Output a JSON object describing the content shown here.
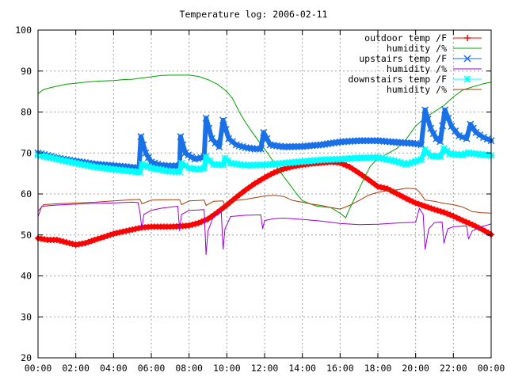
{
  "chart_data": {
    "type": "line",
    "title": "Temperature log: 2006-02-11",
    "xlabel": "",
    "ylabel": "",
    "xlim": [
      0,
      24
    ],
    "ylim": [
      20,
      100
    ],
    "grid": true,
    "legend_position": "top-right",
    "x_tick_labels": [
      "00:00",
      "02:00",
      "04:00",
      "06:00",
      "08:00",
      "10:00",
      "12:00",
      "14:00",
      "16:00",
      "18:00",
      "20:00",
      "22:00",
      "00:00"
    ],
    "y_tick_labels": [
      "20",
      "30",
      "40",
      "50",
      "60",
      "70",
      "80",
      "90",
      "100"
    ],
    "x_ticks": [
      0,
      2,
      4,
      6,
      8,
      10,
      12,
      14,
      16,
      18,
      20,
      22,
      24
    ],
    "y_ticks": [
      20,
      30,
      40,
      50,
      60,
      70,
      80,
      90,
      100
    ],
    "series": [
      {
        "name": "outdoor temp /F",
        "color": "#ff0000",
        "marker": "plus",
        "width": 6,
        "points": [
          [
            0,
            49.2
          ],
          [
            0.5,
            48.8
          ],
          [
            1,
            48.8
          ],
          [
            1.5,
            48.2
          ],
          [
            2,
            47.6
          ],
          [
            2.5,
            48
          ],
          [
            3,
            48.8
          ],
          [
            3.5,
            49.5
          ],
          [
            4,
            50.3
          ],
          [
            4.5,
            50.8
          ],
          [
            5,
            51.3
          ],
          [
            5.5,
            51.8
          ],
          [
            6,
            52
          ],
          [
            6.5,
            52
          ],
          [
            7,
            52
          ],
          [
            7.5,
            52.1
          ],
          [
            8,
            52.3
          ],
          [
            8.5,
            52.9
          ],
          [
            9,
            53.9
          ],
          [
            9.5,
            55.5
          ],
          [
            10,
            57.3
          ],
          [
            10.5,
            59.2
          ],
          [
            11,
            61
          ],
          [
            11.5,
            62.6
          ],
          [
            12,
            64
          ],
          [
            12.5,
            65.2
          ],
          [
            13,
            66.1
          ],
          [
            13.5,
            66.7
          ],
          [
            14,
            67.1
          ],
          [
            14.5,
            67.4
          ],
          [
            15,
            67.6
          ],
          [
            15.5,
            67.8
          ],
          [
            16,
            67.6
          ],
          [
            16.5,
            66.6
          ],
          [
            17,
            65.1
          ],
          [
            17.5,
            63.5
          ],
          [
            18,
            61.8
          ],
          [
            18.5,
            61.3
          ],
          [
            19,
            60.1
          ],
          [
            19.5,
            58.9
          ],
          [
            20,
            57.8
          ],
          [
            20.5,
            57
          ],
          [
            21,
            56.2
          ],
          [
            21.5,
            55.5
          ],
          [
            22,
            54.6
          ],
          [
            22.5,
            53.5
          ],
          [
            23,
            52.5
          ],
          [
            23.5,
            51.4
          ],
          [
            24,
            50.1
          ]
        ]
      },
      {
        "name": "humidity /%",
        "color": "#00a000",
        "marker": "none",
        "width": 1,
        "points": [
          [
            0,
            84.5
          ],
          [
            0.3,
            85.5
          ],
          [
            0.7,
            86
          ],
          [
            1,
            86.3
          ],
          [
            1.5,
            86.8
          ],
          [
            2,
            87
          ],
          [
            2.5,
            87.3
          ],
          [
            3,
            87.5
          ],
          [
            3.5,
            87.6
          ],
          [
            4,
            87.7
          ],
          [
            4.5,
            87.9
          ],
          [
            5,
            88
          ],
          [
            5.5,
            88.3
          ],
          [
            6,
            88.6
          ],
          [
            6.5,
            88.9
          ],
          [
            7,
            89
          ],
          [
            7.5,
            89
          ],
          [
            8,
            89
          ],
          [
            8.5,
            88.7
          ],
          [
            9,
            87.9
          ],
          [
            9.5,
            86.8
          ],
          [
            10,
            85
          ],
          [
            10.3,
            83.3
          ],
          [
            10.7,
            79.7
          ],
          [
            11,
            77.4
          ],
          [
            11.3,
            75.4
          ],
          [
            11.7,
            72.8
          ],
          [
            12,
            71
          ],
          [
            12.3,
            69
          ],
          [
            12.7,
            66.3
          ],
          [
            13,
            64.3
          ],
          [
            13.3,
            62.5
          ],
          [
            13.7,
            60
          ],
          [
            14,
            58.4
          ],
          [
            14.3,
            57.8
          ],
          [
            14.7,
            57.1
          ],
          [
            15,
            56.9
          ],
          [
            15.5,
            56.7
          ],
          [
            16,
            55.3
          ],
          [
            16.3,
            54.2
          ],
          [
            16.5,
            56.4
          ],
          [
            16.8,
            59.2
          ],
          [
            17,
            61.2
          ],
          [
            17.3,
            64.1
          ],
          [
            17.6,
            66.8
          ],
          [
            18,
            68.6
          ],
          [
            18.5,
            69.8
          ],
          [
            19,
            71.1
          ],
          [
            19.5,
            73.4
          ],
          [
            20,
            76.6
          ],
          [
            20.5,
            78.6
          ],
          [
            21,
            80.1
          ],
          [
            21.5,
            81.6
          ],
          [
            22,
            83.7
          ],
          [
            22.5,
            85.4
          ],
          [
            23,
            86.1
          ],
          [
            23.5,
            86.8
          ],
          [
            24,
            87.3
          ]
        ]
      },
      {
        "name": "upstairs temp /F",
        "color": "#1a70e6",
        "marker": "x",
        "width": 6,
        "points": [
          [
            0,
            70
          ],
          [
            1,
            68.8
          ],
          [
            2,
            68
          ],
          [
            3,
            67.3
          ],
          [
            4,
            66.9
          ],
          [
            5,
            66.5
          ],
          [
            5.35,
            66.3
          ],
          [
            5.45,
            74
          ],
          [
            5.7,
            70
          ],
          [
            6,
            67.8
          ],
          [
            6.5,
            67
          ],
          [
            7,
            66.8
          ],
          [
            7.5,
            66.9
          ],
          [
            7.55,
            74
          ],
          [
            7.8,
            70
          ],
          [
            8.3,
            68.5
          ],
          [
            8.8,
            69
          ],
          [
            8.9,
            78.5
          ],
          [
            9.2,
            73.5
          ],
          [
            9.6,
            71.5
          ],
          [
            9.8,
            78
          ],
          [
            10.1,
            73.5
          ],
          [
            10.5,
            72
          ],
          [
            11,
            71.3
          ],
          [
            11.5,
            71
          ],
          [
            11.8,
            71
          ],
          [
            11.95,
            75
          ],
          [
            12.3,
            72
          ],
          [
            13,
            71.5
          ],
          [
            14,
            71.6
          ],
          [
            15,
            72
          ],
          [
            16,
            72.7
          ],
          [
            17,
            73
          ],
          [
            18,
            73
          ],
          [
            19,
            72.6
          ],
          [
            20,
            72.3
          ],
          [
            20.3,
            72
          ],
          [
            20.5,
            80.5
          ],
          [
            20.8,
            76
          ],
          [
            21.1,
            73.5
          ],
          [
            21.3,
            72.8
          ],
          [
            21.55,
            80.5
          ],
          [
            21.9,
            76.5
          ],
          [
            22.3,
            74.2
          ],
          [
            22.7,
            73.5
          ],
          [
            22.9,
            77
          ],
          [
            23.2,
            75
          ],
          [
            23.6,
            73.8
          ],
          [
            24,
            73
          ]
        ]
      },
      {
        "name": "humidity /%",
        "color": "#9b00d3",
        "marker": "none",
        "width": 1,
        "points": [
          [
            0,
            54.5
          ],
          [
            0.2,
            57
          ],
          [
            1,
            57.3
          ],
          [
            2,
            57.5
          ],
          [
            3,
            57.7
          ],
          [
            4,
            57.8
          ],
          [
            4.5,
            57.9
          ],
          [
            5,
            58
          ],
          [
            5.3,
            57.9
          ],
          [
            5.4,
            55.5
          ],
          [
            5.5,
            51.5
          ],
          [
            5.6,
            55
          ],
          [
            6,
            56
          ],
          [
            6.5,
            56.5
          ],
          [
            7,
            56.8
          ],
          [
            7.4,
            57
          ],
          [
            7.5,
            51
          ],
          [
            7.6,
            55
          ],
          [
            8,
            56
          ],
          [
            8.5,
            56.1
          ],
          [
            8.8,
            56.2
          ],
          [
            8.9,
            45.2
          ],
          [
            9,
            51
          ],
          [
            9.3,
            54.5
          ],
          [
            9.6,
            55.2
          ],
          [
            9.7,
            56
          ],
          [
            9.8,
            46.5
          ],
          [
            9.9,
            51.5
          ],
          [
            10.2,
            54.5
          ],
          [
            11,
            54.8
          ],
          [
            11.8,
            54.9
          ],
          [
            11.9,
            51.5
          ],
          [
            12,
            53.5
          ],
          [
            12.5,
            54
          ],
          [
            13,
            54.1
          ],
          [
            14,
            53.8
          ],
          [
            15,
            53.4
          ],
          [
            16,
            52.8
          ],
          [
            17,
            52.5
          ],
          [
            18,
            52.6
          ],
          [
            19,
            52.9
          ],
          [
            20,
            53.1
          ],
          [
            20.2,
            56.5
          ],
          [
            20.4,
            55
          ],
          [
            20.5,
            46.5
          ],
          [
            20.7,
            51.5
          ],
          [
            21,
            53
          ],
          [
            21.4,
            53.2
          ],
          [
            21.5,
            48
          ],
          [
            21.7,
            51.5
          ],
          [
            22,
            52
          ],
          [
            22.7,
            52.2
          ],
          [
            22.8,
            49
          ],
          [
            23,
            51
          ],
          [
            23.5,
            52
          ],
          [
            24,
            52.7
          ]
        ]
      },
      {
        "name": "downstairs temp /F",
        "color": "#00ffff",
        "marker": "star",
        "width": 6,
        "points": [
          [
            0,
            69.5
          ],
          [
            1,
            68.5
          ],
          [
            2,
            67.5
          ],
          [
            3,
            66.6
          ],
          [
            4,
            66
          ],
          [
            5,
            65.5
          ],
          [
            5.4,
            65.3
          ],
          [
            5.5,
            67.3
          ],
          [
            6,
            66.3
          ],
          [
            7,
            65.5
          ],
          [
            7.5,
            65.4
          ],
          [
            7.6,
            67.5
          ],
          [
            8,
            66.3
          ],
          [
            8.5,
            66
          ],
          [
            8.8,
            66.3
          ],
          [
            8.9,
            69
          ],
          [
            9.3,
            67.2
          ],
          [
            9.8,
            67.1
          ],
          [
            9.9,
            68.7
          ],
          [
            10.2,
            67.5
          ],
          [
            11,
            67
          ],
          [
            12,
            67.1
          ],
          [
            13,
            67.5
          ],
          [
            14,
            67.9
          ],
          [
            15,
            68.3
          ],
          [
            16,
            68.5
          ],
          [
            17,
            68.8
          ],
          [
            18,
            68.9
          ],
          [
            19,
            67.9
          ],
          [
            19.5,
            67.2
          ],
          [
            20,
            68
          ],
          [
            20.3,
            68.4
          ],
          [
            20.5,
            70.8
          ],
          [
            20.8,
            69.3
          ],
          [
            21.3,
            69.1
          ],
          [
            21.5,
            71.1
          ],
          [
            21.8,
            69.8
          ],
          [
            22.5,
            69.5
          ],
          [
            22.8,
            70.1
          ],
          [
            23.1,
            69.8
          ],
          [
            24,
            69.4
          ]
        ]
      },
      {
        "name": "humidity /%",
        "color": "#a33e0c",
        "marker": "none",
        "width": 1,
        "points": [
          [
            0,
            55.8
          ],
          [
            0.3,
            57.4
          ],
          [
            1,
            57.6
          ],
          [
            2,
            57.8
          ],
          [
            3,
            58
          ],
          [
            4,
            58.3
          ],
          [
            5,
            58.6
          ],
          [
            5.4,
            58.7
          ],
          [
            5.5,
            57.6
          ],
          [
            6,
            58.5
          ],
          [
            7,
            58.6
          ],
          [
            7.5,
            58.6
          ],
          [
            7.6,
            57.4
          ],
          [
            8,
            58.3
          ],
          [
            8.8,
            58.5
          ],
          [
            8.9,
            57.2
          ],
          [
            9.3,
            58.2
          ],
          [
            9.8,
            58.3
          ],
          [
            9.9,
            57.1
          ],
          [
            10.3,
            58.3
          ],
          [
            11,
            58.7
          ],
          [
            12,
            59.5
          ],
          [
            12.5,
            59.7
          ],
          [
            13,
            59.4
          ],
          [
            13.5,
            58.4
          ],
          [
            14,
            58
          ],
          [
            14.5,
            57.5
          ],
          [
            15,
            57.2
          ],
          [
            15.5,
            56.7
          ],
          [
            16,
            56.3
          ],
          [
            16.5,
            57.2
          ],
          [
            17,
            58.4
          ],
          [
            17.5,
            59.7
          ],
          [
            18,
            60.4
          ],
          [
            18.5,
            60.8
          ],
          [
            19,
            61
          ],
          [
            19.5,
            61.4
          ],
          [
            20,
            61.3
          ],
          [
            20.2,
            60.5
          ],
          [
            20.5,
            58.5
          ],
          [
            21,
            58.2
          ],
          [
            21.5,
            57.7
          ],
          [
            22,
            57.4
          ],
          [
            22.5,
            56.8
          ],
          [
            23,
            55.7
          ],
          [
            23.5,
            55.4
          ],
          [
            24,
            55.3
          ]
        ]
      }
    ]
  }
}
